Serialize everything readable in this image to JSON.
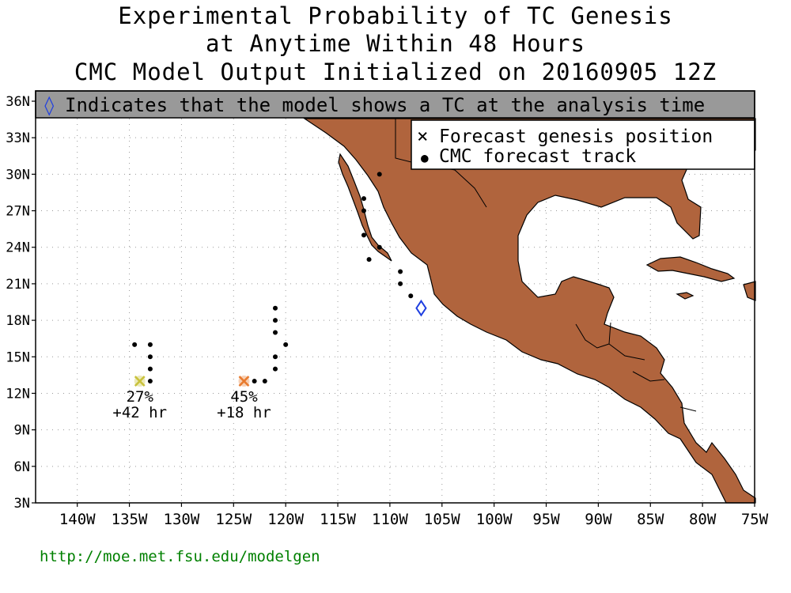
{
  "title": {
    "line1": "Experimental Probability of TC Genesis",
    "line2": "at Anytime Within 48 Hours",
    "line3": "CMC Model Output Initialized on 20160905 12Z"
  },
  "banner": {
    "symbol": "◊",
    "text": "Indicates that the model shows a TC at the analysis time",
    "background": "#999999"
  },
  "legend": {
    "genesis_symbol": "×",
    "genesis_label": "Forecast genesis position",
    "track_symbol": "●",
    "track_label": "CMC forecast track"
  },
  "axes": {
    "lat_labels": [
      "36N",
      "33N",
      "30N",
      "27N",
      "24N",
      "21N",
      "18N",
      "15N",
      "12N",
      "9N",
      "6N",
      "3N"
    ],
    "lon_labels": [
      "140W",
      "135W",
      "130W",
      "125W",
      "120W",
      "115W",
      "110W",
      "105W",
      "100W",
      "95W",
      "90W",
      "85W",
      "80W",
      "75W"
    ],
    "lon_range": [
      -144,
      -75
    ],
    "lat_range": [
      3,
      36
    ]
  },
  "colors": {
    "land": "#b0643d",
    "ocean": "#ffffff",
    "yellow_x": "#c9c23c",
    "orange_x": "#e87a2e",
    "analysis_diamond": "#1f3fe0",
    "url": "#008000"
  },
  "systems": [
    {
      "probability": "27%",
      "lead_time": "+42 hr",
      "genesis": {
        "lon": -134,
        "lat": 13
      },
      "marker_color": "#c9c23c",
      "track": [
        {
          "lon": -134.5,
          "lat": 16
        },
        {
          "lon": -133,
          "lat": 16
        },
        {
          "lon": -133,
          "lat": 15
        },
        {
          "lon": -133,
          "lat": 14
        },
        {
          "lon": -133,
          "lat": 13
        }
      ]
    },
    {
      "probability": "45%",
      "lead_time": "+18 hr",
      "genesis": {
        "lon": -124,
        "lat": 13
      },
      "marker_color": "#e87a2e",
      "track": [
        {
          "lon": -123,
          "lat": 13
        },
        {
          "lon": -122,
          "lat": 13
        },
        {
          "lon": -121,
          "lat": 14
        },
        {
          "lon": -121,
          "lat": 15
        },
        {
          "lon": -121,
          "lat": 17
        },
        {
          "lon": -121,
          "lat": 18
        },
        {
          "lon": -121,
          "lat": 19
        },
        {
          "lon": -120,
          "lat": 16
        }
      ]
    }
  ],
  "analysis_tc": {
    "position": {
      "lon": -107,
      "lat": 19
    },
    "track": [
      {
        "lon": -108,
        "lat": 20
      },
      {
        "lon": -109,
        "lat": 21
      },
      {
        "lon": -109,
        "lat": 22
      },
      {
        "lon": -111,
        "lat": 24
      },
      {
        "lon": -112,
        "lat": 23
      },
      {
        "lon": -112.5,
        "lat": 25
      },
      {
        "lon": -112.5,
        "lat": 27
      },
      {
        "lon": -112.5,
        "lat": 28
      },
      {
        "lon": -111,
        "lat": 30
      }
    ]
  },
  "footer": {
    "url": "http://moe.met.fsu.edu/modelgen"
  }
}
